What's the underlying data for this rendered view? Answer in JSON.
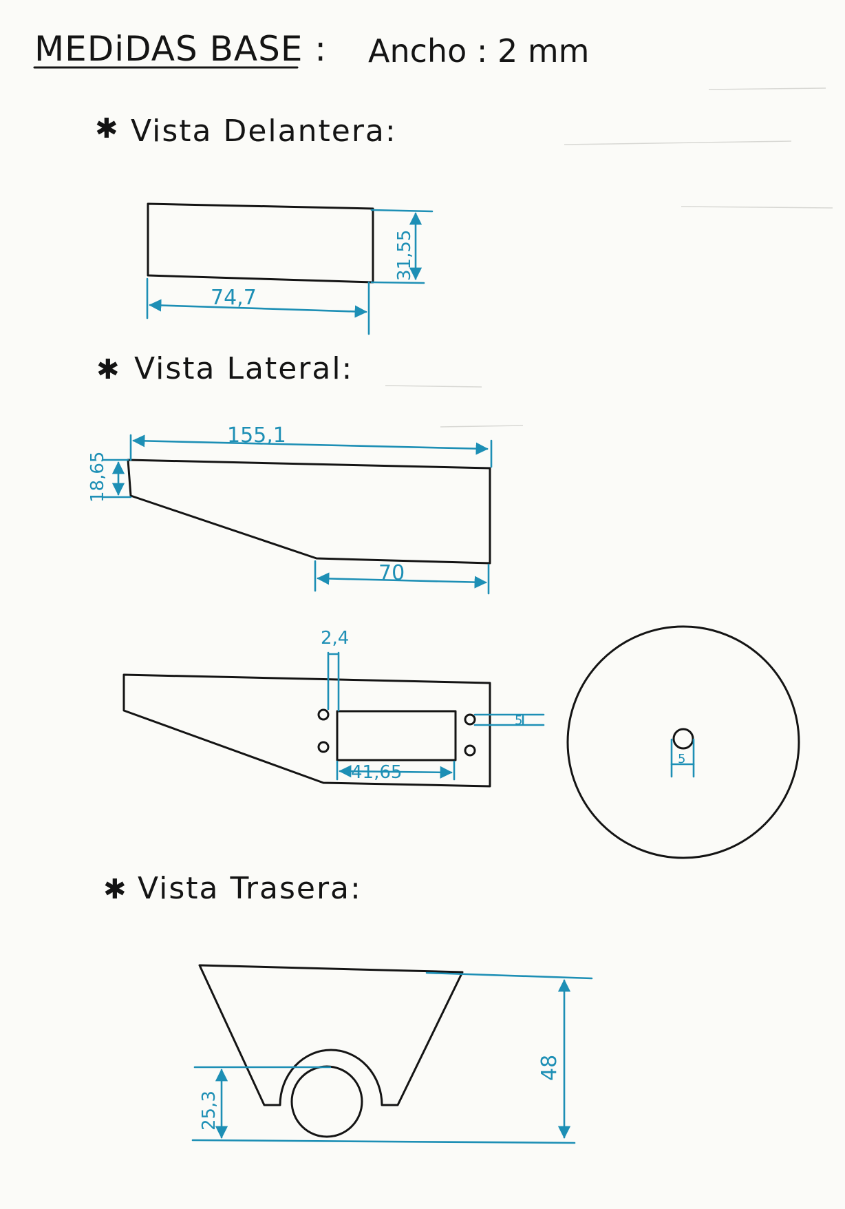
{
  "header": {
    "title": "MEDiDAS BASE :",
    "width_note": "Ancho : 2 mm"
  },
  "views": {
    "front": {
      "label": "Vista Delantera:",
      "dim_width": "74,7",
      "dim_height": "31,55"
    },
    "side": {
      "label": "Vista Lateral:",
      "dim_length": "155,1",
      "dim_front_height": "18,65",
      "dim_bottom": "70"
    },
    "side_detail": {
      "dim_hole_offset": "2,4",
      "dim_slot_width": "41,65",
      "dim_side_small": "5",
      "dim_circle_hole": "5"
    },
    "rear": {
      "label": "Vista Trasera:",
      "dim_height": "48",
      "dim_arch": "25,3"
    }
  },
  "colors": {
    "ink": "#141414",
    "dimension": "#1d8fb5",
    "paper": "#fbfbf8"
  }
}
